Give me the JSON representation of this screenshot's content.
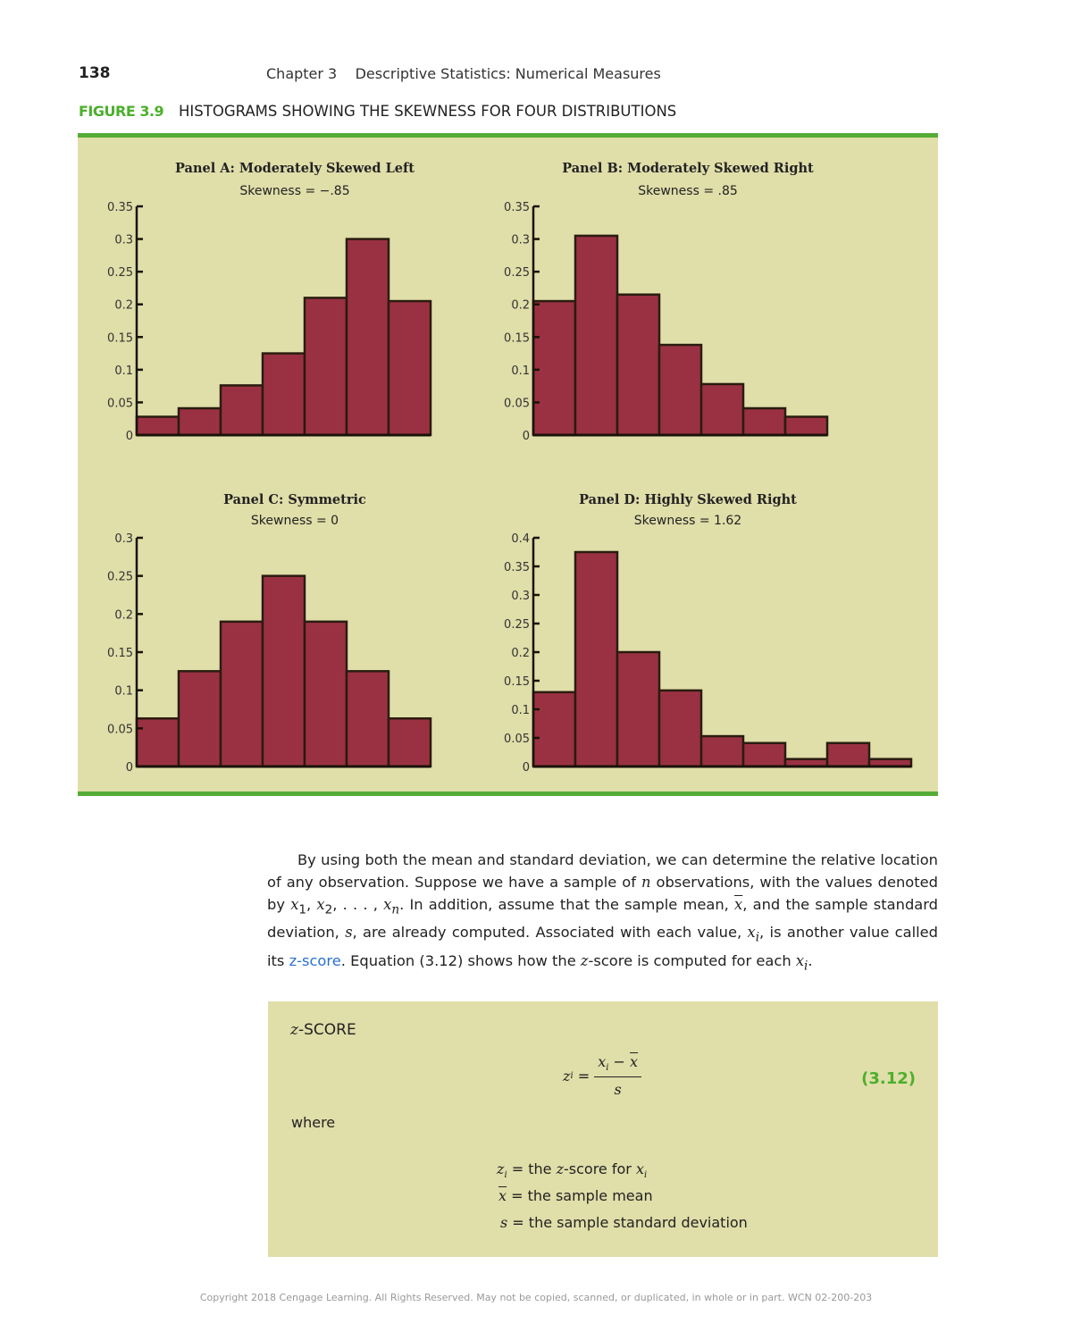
{
  "header": {
    "page_number": "138",
    "running_head": "Chapter 3    Descriptive Statistics: Numerical Measures"
  },
  "figure": {
    "label": "FIGURE 3.9",
    "title": "HISTOGRAMS SHOWING THE SKEWNESS FOR FOUR DISTRIBUTIONS"
  },
  "colors": {
    "bar_fill": "#9a3142",
    "bar_stroke": "#2a1c10",
    "panel_bg": "#e0dea9",
    "accent_green": "#55ac37",
    "link_blue": "#2a6fd0"
  },
  "chart_data": [
    {
      "type": "bar",
      "title": "Panel A: Moderately Skewed Left",
      "subtitle": "Skewness = −.85",
      "ylim": [
        0,
        0.35
      ],
      "yticks": [
        "0",
        "0.05",
        "0.1",
        "0.15",
        "0.2",
        "0.25",
        "0.3",
        "0.35"
      ],
      "values": [
        0.028,
        0.041,
        0.076,
        0.125,
        0.21,
        0.3,
        0.205
      ],
      "grid": false
    },
    {
      "type": "bar",
      "title": "Panel B: Moderately Skewed Right",
      "subtitle": "Skewness = .85",
      "ylim": [
        0,
        0.35
      ],
      "yticks": [
        "0",
        "0.05",
        "0.1",
        "0.15",
        "0.2",
        "0.25",
        "0.3",
        "0.35"
      ],
      "values": [
        0.205,
        0.305,
        0.215,
        0.138,
        0.078,
        0.041,
        0.028
      ],
      "grid": false
    },
    {
      "type": "bar",
      "title": "Panel C: Symmetric",
      "subtitle": "Skewness = 0",
      "ylim": [
        0,
        0.3
      ],
      "yticks": [
        "0",
        "0.05",
        "0.1",
        "0.15",
        "0.2",
        "0.25",
        "0.3"
      ],
      "values": [
        0.063,
        0.125,
        0.19,
        0.25,
        0.19,
        0.125,
        0.063
      ],
      "grid": false
    },
    {
      "type": "bar",
      "title": "Panel D: Highly Skewed Right",
      "subtitle": "Skewness = 1.62",
      "ylim": [
        0,
        0.4
      ],
      "yticks": [
        "0",
        "0.05",
        "0.1",
        "0.15",
        "0.2",
        "0.25",
        "0.3",
        "0.35",
        "0.4"
      ],
      "values": [
        0.13,
        0.375,
        0.2,
        0.133,
        0.053,
        0.041,
        0.013,
        0.041,
        0.013
      ],
      "grid": false
    }
  ],
  "body": {
    "p1": "By using both the mean and standard deviation, we can determine the relative location of any observation. Suppose we have a sample of ",
    "n": "n",
    "p2": " observations, with the values denoted by ",
    "x": "x",
    "sub1": "1",
    "sub2": "2",
    "subn": "n",
    "subi": "i",
    "sep": ", ",
    "dots": ", . . . , ",
    "p3": ". In addition, assume that the sample mean, ",
    "p4": ", and the sample standard deviation, ",
    "s": "s",
    "p5": ", are already computed. Associated with each value, ",
    "p6": ", is another value called its ",
    "link": "z-score",
    "p7": ". Equation (3.12) shows how the ",
    "z": "z",
    "p8": "-score is computed for each ",
    "end": "."
  },
  "formula_box": {
    "heading_z": "z",
    "heading": "-SCORE",
    "equals": " = ",
    "minus": " − ",
    "eq_number": "(3.12)",
    "where": "where",
    "def1": " = the ",
    "def1b": "-score for ",
    "def2": " = the sample mean",
    "def3": " = the sample standard deviation"
  },
  "footer": {
    "copyright": "Copyright 2018 Cengage Learning. All Rights Reserved. May not be copied, scanned, or duplicated, in whole or in part.  WCN 02-200-203"
  }
}
